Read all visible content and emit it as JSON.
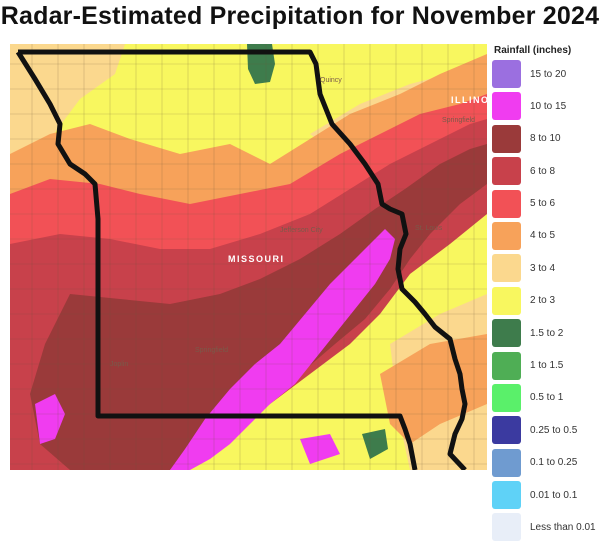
{
  "title": "Radar-Estimated Precipitation for November 2024",
  "legend": {
    "title": "Rainfall (inches)",
    "items": [
      {
        "label": "15 to 20",
        "color": "#9b6fe0"
      },
      {
        "label": "10 to 15",
        "color": "#f03cf0"
      },
      {
        "label": "8 to 10",
        "color": "#9a3a3a"
      },
      {
        "label": "6 to 8",
        "color": "#c8414b"
      },
      {
        "label": "5 to 6",
        "color": "#f25156"
      },
      {
        "label": "4 to 5",
        "color": "#f7a25a"
      },
      {
        "label": "3 to 4",
        "color": "#fbd88e"
      },
      {
        "label": "2 to 3",
        "color": "#f8f75f"
      },
      {
        "label": "1.5 to 2",
        "color": "#3e7c4c"
      },
      {
        "label": "1 to 1.5",
        "color": "#4fae55"
      },
      {
        "label": "0.5 to 1",
        "color": "#5af06a"
      },
      {
        "label": "0.25 to 0.5",
        "color": "#3b3aa0"
      },
      {
        "label": "0.1 to 0.25",
        "color": "#6f9bd0"
      },
      {
        "label": "0.01 to 0.1",
        "color": "#5fd2f7"
      },
      {
        "label": "Less than 0.01",
        "color": "#e8eef8"
      }
    ]
  },
  "map": {
    "state_label": "MISSOURI",
    "places": {
      "quincy": "Quincy",
      "illinois": "ILLINOIS",
      "springfield_il": "Springfield",
      "st_louis": "St. Louis",
      "jefferson_city": "Jefferson City",
      "joplin": "Joplin",
      "springfield_mo": "Springfield"
    }
  }
}
